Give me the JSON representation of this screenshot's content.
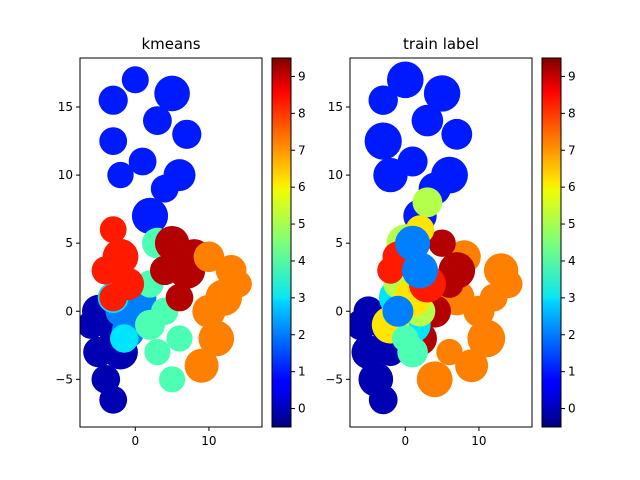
{
  "chart_data": [
    {
      "type": "scatter",
      "title": "kmeans",
      "xlabel": "",
      "ylabel": "",
      "xlim": [
        -7.5,
        17.2
      ],
      "ylim": [
        -8.5,
        18.6
      ],
      "xticks": [
        "0",
        "10"
      ],
      "xtick_values": [
        0,
        10
      ],
      "yticks": [
        "−5",
        "0",
        "5",
        "10",
        "15"
      ],
      "ytick_values": [
        -5,
        0,
        5,
        10,
        15
      ],
      "colorbar": {
        "colormap": "jet",
        "range": [
          -0.5,
          9.5
        ],
        "ticks": [
          "0",
          "1",
          "2",
          "3",
          "4",
          "5",
          "6",
          "7",
          "8",
          "9"
        ],
        "tick_values": [
          0,
          1,
          2,
          3,
          4,
          5,
          6,
          7,
          8,
          9
        ]
      },
      "clusters": [
        {
          "label": 1,
          "points": [
            [
              -3,
              15.5
            ],
            [
              0,
              17
            ],
            [
              3,
              14
            ],
            [
              7,
              13
            ],
            [
              -2,
              10
            ],
            [
              1,
              11
            ],
            [
              4,
              9
            ],
            [
              6,
              10
            ],
            [
              2,
              7
            ],
            [
              -3,
              12.5
            ],
            [
              5,
              16
            ]
          ]
        },
        {
          "label": 0,
          "points": [
            [
              -6,
              -1
            ],
            [
              -5,
              -3
            ],
            [
              -4,
              -5
            ],
            [
              -3,
              -6.5
            ],
            [
              -2,
              -3
            ],
            [
              -5,
              0
            ],
            [
              -3,
              -1
            ]
          ]
        },
        {
          "label": 2,
          "points": [
            [
              -2,
              0
            ],
            [
              0,
              0.5
            ],
            [
              -1,
              -1.5
            ],
            [
              1,
              1
            ]
          ]
        },
        {
          "label": 3,
          "points": [
            [
              -3,
              1
            ],
            [
              -1.5,
              -2
            ]
          ]
        },
        {
          "label": 4,
          "points": [
            [
              3,
              5
            ],
            [
              2,
              2
            ],
            [
              4,
              0
            ],
            [
              3,
              -3
            ],
            [
              5,
              -5
            ],
            [
              6,
              -2
            ],
            [
              2,
              -1
            ]
          ]
        },
        {
          "label": 8,
          "points": [
            [
              -3,
              6
            ],
            [
              -2,
              4
            ],
            [
              -4,
              3
            ],
            [
              -1,
              2
            ],
            [
              -3,
              1
            ]
          ]
        },
        {
          "label": 9,
          "points": [
            [
              5,
              5
            ],
            [
              7,
              3
            ],
            [
              6,
              1
            ],
            [
              8,
              4
            ],
            [
              4,
              3
            ]
          ]
        },
        {
          "label": 7,
          "points": [
            [
              10,
              4
            ],
            [
              12,
              1
            ],
            [
              11,
              -2
            ],
            [
              9,
              -4
            ],
            [
              14,
              2
            ],
            [
              10,
              0
            ],
            [
              13,
              3
            ]
          ]
        }
      ]
    },
    {
      "type": "scatter",
      "title": "train label",
      "xlabel": "",
      "ylabel": "",
      "xlim": [
        -7.5,
        17.2
      ],
      "ylim": [
        -8.5,
        18.6
      ],
      "xticks": [
        "0",
        "10"
      ],
      "xtick_values": [
        0,
        10
      ],
      "yticks": [
        "−5",
        "0",
        "5",
        "10",
        "15"
      ],
      "ytick_values": [
        -5,
        0,
        5,
        10,
        15
      ],
      "colorbar": {
        "colormap": "jet",
        "range": [
          -0.5,
          9.5
        ],
        "ticks": [
          "0",
          "1",
          "2",
          "3",
          "4",
          "5",
          "6",
          "7",
          "8",
          "9"
        ],
        "tick_values": [
          0,
          1,
          2,
          3,
          4,
          5,
          6,
          7,
          8,
          9
        ]
      },
      "clusters": [
        {
          "label": 1,
          "points": [
            [
              -3,
              15.5
            ],
            [
              0,
              17
            ],
            [
              3,
              14
            ],
            [
              7,
              13
            ],
            [
              -2,
              10
            ],
            [
              1,
              11
            ],
            [
              4,
              9
            ],
            [
              6,
              10
            ],
            [
              2,
              7
            ],
            [
              -3,
              12.5
            ],
            [
              5,
              16
            ]
          ]
        },
        {
          "label": 0,
          "points": [
            [
              -6,
              -1
            ],
            [
              -5,
              -3
            ],
            [
              -4,
              -5
            ],
            [
              -3,
              -6.5
            ],
            [
              -2,
              -3
            ],
            [
              -5,
              0
            ],
            [
              -3,
              -1
            ]
          ]
        },
        {
          "label": 7,
          "points": [
            [
              8,
              4
            ],
            [
              12,
              1
            ],
            [
              11,
              -2
            ],
            [
              9,
              -4
            ],
            [
              14,
              2
            ],
            [
              10,
              0
            ],
            [
              6,
              -3
            ],
            [
              4,
              -5
            ],
            [
              13,
              3
            ],
            [
              7,
              1
            ]
          ]
        },
        {
          "label": 9,
          "points": [
            [
              5,
              5
            ],
            [
              6,
              2
            ],
            [
              4,
              0
            ],
            [
              7,
              3
            ],
            [
              2,
              -2
            ]
          ]
        },
        {
          "label": 3,
          "points": [
            [
              -1,
              1
            ],
            [
              1,
              -1
            ],
            [
              0,
              3
            ]
          ]
        },
        {
          "label": 5,
          "points": [
            [
              -1,
              2
            ],
            [
              2,
              0
            ],
            [
              0,
              5
            ],
            [
              3,
              8
            ]
          ]
        },
        {
          "label": 6,
          "points": [
            [
              1,
              1
            ],
            [
              -2,
              -1
            ],
            [
              2,
              6
            ]
          ]
        },
        {
          "label": 4,
          "points": [
            [
              0,
              -2
            ],
            [
              1,
              -3
            ]
          ]
        },
        {
          "label": 8,
          "points": [
            [
              -2,
              3
            ],
            [
              3,
              2
            ],
            [
              -1,
              4
            ]
          ]
        },
        {
          "label": 2,
          "points": [
            [
              -1,
              0
            ],
            [
              2,
              3
            ],
            [
              1,
              5
            ]
          ]
        }
      ]
    }
  ]
}
